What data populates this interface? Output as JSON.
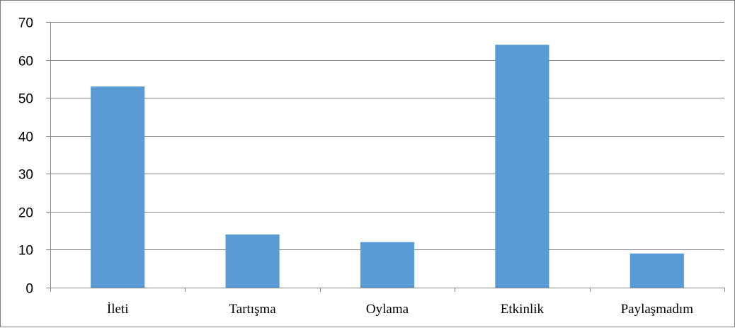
{
  "chart_data": {
    "type": "bar",
    "categories": [
      "İleti",
      "Tartışma",
      "Oylama",
      "Etkinlik",
      "Paylaşmadım"
    ],
    "values": [
      53,
      14,
      12,
      64,
      9
    ],
    "ylim": [
      0,
      70
    ],
    "yticks": [
      0,
      10,
      20,
      30,
      40,
      50,
      60,
      70
    ],
    "grid": true,
    "legend": "none",
    "title": "",
    "xlabel": "",
    "ylabel": "",
    "colors": {
      "bar": "#5B9BD5",
      "grid": "#868686",
      "axis": "#868686"
    }
  }
}
